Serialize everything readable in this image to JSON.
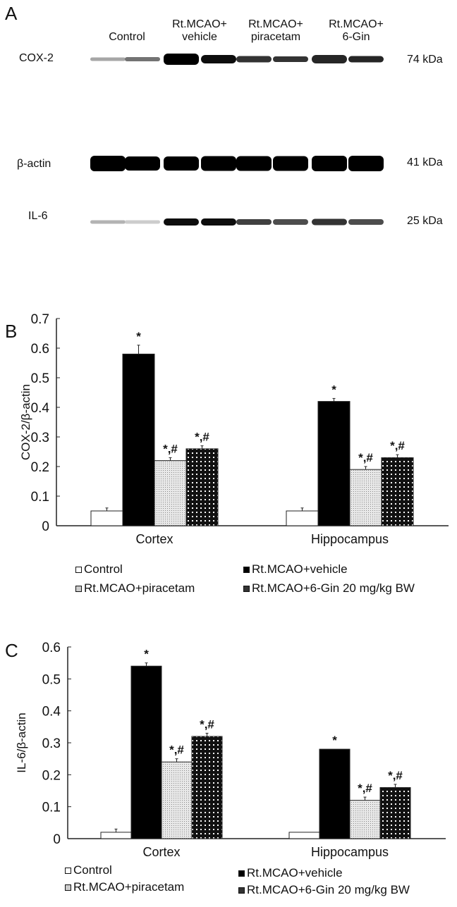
{
  "panel_a": {
    "letter": "A",
    "lane_headers": [
      {
        "line1": "",
        "line2": "Control"
      },
      {
        "line1": "Rt.MCAO+",
        "line2": "vehicle"
      },
      {
        "line1": "Rt.MCAO+",
        "line2": "piracetam"
      },
      {
        "line1": "Rt.MCAO+",
        "line2": "6-Gin"
      }
    ],
    "blots": [
      {
        "label": "COX-2",
        "size": "74 kDa",
        "intensities": [
          0.35,
          0.55,
          1.0,
          0.95,
          0.8,
          0.8,
          0.85,
          0.85
        ],
        "heights": [
          5,
          6,
          16,
          12,
          9,
          8,
          12,
          9
        ]
      },
      {
        "label": "β-actin",
        "size": "41 kDa",
        "intensities": [
          1,
          1,
          1,
          1,
          1,
          1,
          1,
          1
        ],
        "heights": [
          22,
          20,
          20,
          21,
          21,
          21,
          22,
          22
        ]
      },
      {
        "label": "IL-6",
        "size": "25 kDa",
        "intensities": [
          0.3,
          0.2,
          0.95,
          0.95,
          0.75,
          0.7,
          0.8,
          0.7
        ],
        "heights": [
          5,
          5,
          10,
          10,
          8,
          8,
          9,
          8
        ]
      }
    ]
  },
  "chart_data": [
    {
      "panel": "B",
      "type": "bar",
      "title": "",
      "xlabel": "",
      "ylabel": "COX-2/β-actin",
      "ylim": [
        0,
        0.7
      ],
      "yticks": [
        "0",
        "0.1",
        "0.2",
        "0.3",
        "0.4",
        "0.5",
        "0.6",
        "0.7"
      ],
      "grid": false,
      "legend_position": "bottom",
      "categories": [
        "Cortex",
        "Hippocampus"
      ],
      "series": [
        {
          "name": "Control",
          "values": [
            0.05,
            0.05
          ],
          "errors": [
            0.01,
            0.01
          ],
          "annotations": [
            "",
            ""
          ]
        },
        {
          "name": "Rt.MCAO+vehicle",
          "values": [
            0.58,
            0.42
          ],
          "errors": [
            0.03,
            0.01
          ],
          "annotations": [
            "*",
            "*"
          ]
        },
        {
          "name": "Rt.MCAO+piracetam",
          "values": [
            0.22,
            0.19
          ],
          "errors": [
            0.01,
            0.01
          ],
          "annotations": [
            "*,#",
            "*,#"
          ]
        },
        {
          "name": "Rt.MCAO+6-Gin 20 mg/kg BW",
          "values": [
            0.26,
            0.23
          ],
          "errors": [
            0.01,
            0.01
          ],
          "annotations": [
            "*,#",
            "*,#"
          ]
        }
      ]
    },
    {
      "panel": "C",
      "type": "bar",
      "title": "",
      "xlabel": "",
      "ylabel": "IL-6/β-actin",
      "ylim": [
        0,
        0.6
      ],
      "yticks": [
        "0",
        "0.1",
        "0.2",
        "0.3",
        "0.4",
        "0.5",
        "0.6"
      ],
      "grid": false,
      "legend_position": "bottom",
      "categories": [
        "Cortex",
        "Hippocampus"
      ],
      "series": [
        {
          "name": "Control",
          "values": [
            0.02,
            0.02
          ],
          "errors": [
            0.01,
            0.0
          ],
          "annotations": [
            "",
            ""
          ]
        },
        {
          "name": "Rt.MCAO+vehicle",
          "values": [
            0.54,
            0.28
          ],
          "errors": [
            0.01,
            0.0
          ],
          "annotations": [
            "*",
            "*"
          ]
        },
        {
          "name": "Rt.MCAO+piracetam",
          "values": [
            0.24,
            0.12
          ],
          "errors": [
            0.01,
            0.01
          ],
          "annotations": [
            "*,#",
            "*,#"
          ]
        },
        {
          "name": "Rt.MCAO+6-Gin 20 mg/kg BW",
          "values": [
            0.32,
            0.16
          ],
          "errors": [
            0.01,
            0.01
          ],
          "annotations": [
            "*,#",
            "*,#"
          ]
        }
      ]
    }
  ],
  "colors": {
    "control": "#ffffff",
    "vehicle": "#000000",
    "piracetam": "#d6d6d6",
    "gin": "#1a1a1a",
    "axis": "#222222"
  }
}
